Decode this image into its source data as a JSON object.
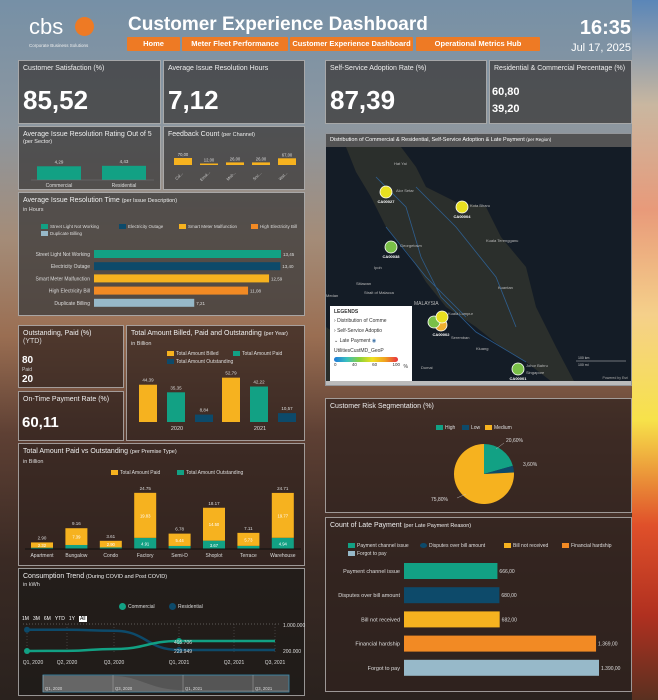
{
  "header": {
    "logo_text": "cbs",
    "logo_sub": "Corporate Business Solutions",
    "title": "Customer Experience Dashboard",
    "time": "16:35",
    "date": "Jul 17, 2025",
    "nav": [
      "Home",
      "Meter Fleet Performance",
      "Customer Experience Dashboard",
      "Operational Metrics Hub"
    ]
  },
  "colors": {
    "teal": "#12a184",
    "navy": "#0d4a6a",
    "yellow": "#f6b21f",
    "orange": "#f28a24",
    "lightblue": "#97b9c9",
    "nav": "#ee7a24"
  },
  "kpis": {
    "satisfaction": {
      "title": "Customer Satisfaction (%)",
      "value": "85,52"
    },
    "resolution_hours": {
      "title": "Average Issue Resolution Hours",
      "value": "7,12"
    },
    "self_service": {
      "title": "Self-Service Adoption Rate (%)",
      "value": "87,39"
    },
    "res_com": {
      "title": "Residential & Commercial Percentage (%)",
      "value1": "60,80",
      "value2": "39,20"
    },
    "outstanding": {
      "title": "Outstanding, Paid (%)",
      "subtitle": "(YTD)",
      "paid": "80",
      "paid_label": "Paid",
      "outstanding": "20"
    },
    "ontime": {
      "title": "On-Time Payment Rate (%)",
      "value": "60,11"
    }
  },
  "chart_data": [
    {
      "id": "rating",
      "type": "bar",
      "title": "Average Issue Resolution Rating Out of 5",
      "title_note": "(per Sector)",
      "categories": [
        "Commercial",
        "Residential"
      ],
      "values": [
        4.29,
        4.43
      ],
      "labels": [
        "4,29",
        "4,43"
      ]
    },
    {
      "id": "feedback",
      "type": "bar",
      "title": "Feedback Count",
      "title_note": "(per Channel)",
      "categories": [
        "Cal...",
        "Emai...",
        "Mob...",
        "Soc...",
        "Wal..."
      ],
      "values": [
        70,
        12,
        26,
        26,
        67
      ],
      "labels": [
        "70,00",
        "12,00",
        "26,00",
        "26,00",
        "67,00"
      ]
    },
    {
      "id": "resolution_time",
      "type": "bar",
      "orientation": "horizontal",
      "title": "Average Issue Resolution Time",
      "title_note": "(per Issue Description)",
      "subtitle": "in Hours",
      "categories": [
        "Street Light Not Working",
        "Electricity Outage",
        "Smart Meter Malfunction",
        "High Electricity Bill",
        "Duplicate Billing"
      ],
      "values": [
        13.45,
        13.4,
        12.59,
        11.08,
        7.21
      ],
      "labels": [
        "13,45",
        "13,40",
        "12,59",
        "11,08",
        "7,21"
      ]
    },
    {
      "id": "billed",
      "type": "bar",
      "title": "Total Amount Billed, Paid and Outstanding",
      "title_note": "(per Year)",
      "subtitle": "in Billion",
      "categories": [
        "2020",
        "2021"
      ],
      "series": [
        {
          "name": "Total Amount Billed",
          "values": [
            44.39,
            52.79
          ],
          "labels": [
            "44,39",
            "52,79"
          ]
        },
        {
          "name": "Total Amount Paid",
          "values": [
            35.35,
            42.22
          ],
          "labels": [
            "35,35",
            "42,22"
          ]
        },
        {
          "name": "Total Amount Outstanding",
          "values": [
            8.84,
            10.57
          ],
          "labels": [
            "8,84",
            "10,57"
          ]
        }
      ]
    },
    {
      "id": "premise",
      "type": "bar",
      "stacked": true,
      "title": "Total Amount Paid vs Outstanding",
      "title_note": "(per Premise Type)",
      "subtitle": "in Billion",
      "categories": [
        "Apartment",
        "Bungalow",
        "Condo",
        "Factory",
        "Semi-D",
        "Shoplot",
        "Terrace",
        "Warehouse"
      ],
      "series": [
        {
          "name": "Total Amount Paid",
          "values": [
            2.32,
            7.39,
            2.9,
            19.83,
            5.44,
            14.5,
            5.73,
            19.77
          ]
        },
        {
          "name": "Total Amount Outstanding",
          "values": [
            0.58,
            1.77,
            0.71,
            4.91,
            1.34,
            3.67,
            1.38,
            4.94
          ]
        }
      ],
      "totals": [
        "2.90",
        "9.16",
        "3.61",
        "24.75",
        "6.78",
        "18.17",
        "7.11",
        "24.71"
      ],
      "paid_labels": [
        "2.32",
        "7.39",
        "2.90",
        "19.83",
        "5.44",
        "14.50",
        "5.73",
        "19.77"
      ],
      "out_labels": [
        "",
        "",
        "",
        "4.91",
        "",
        "3.67",
        "",
        "4.94"
      ]
    },
    {
      "id": "consumption",
      "type": "line",
      "title": "Consumption Trend",
      "title_note": "(During COVID and Post COVID)",
      "subtitle": "in kWh",
      "x": [
        "Q1, 2020",
        "Q2, 2020",
        "Q3, 2020",
        "Q1, 2021",
        "Q2, 2021",
        "Q3, 2021"
      ],
      "ylim": [
        200000,
        1000000
      ],
      "yticks": [
        "1.000.000",
        "200.000"
      ],
      "series": [
        {
          "name": "Commercial",
          "values": [
            200000,
            205000,
            260000,
            495706,
            495706,
            495706
          ]
        },
        {
          "name": "Residential",
          "values": [
            830000,
            830000,
            800000,
            229949,
            229949,
            229949
          ]
        }
      ],
      "annotations": [
        "495.706",
        "229.949"
      ],
      "ranges": [
        "1M",
        "3M",
        "6M",
        "YTD",
        "1Y",
        "All"
      ],
      "navigator": [
        "Q1, 2020",
        "Q3, 2020",
        "Q1, 2021",
        "Q3, 2021"
      ]
    },
    {
      "id": "risk",
      "type": "pie",
      "title": "Customer Risk Segmentation (%)",
      "categories": [
        "High",
        "Low",
        "Medium"
      ],
      "values": [
        20.6,
        3.6,
        75.8
      ],
      "labels": [
        "20,60%",
        "3,60%",
        "75,80%"
      ]
    },
    {
      "id": "late",
      "type": "bar",
      "orientation": "horizontal",
      "title": "Count of Late Payment",
      "title_note": "(per Late Payment Reason)",
      "categories": [
        "Payment channel issue",
        "Disputes over bill amount",
        "Bill not received",
        "Financial hardship",
        "Forgot to pay"
      ],
      "values": [
        666,
        680,
        682,
        1369,
        1390
      ],
      "labels": [
        "666,00",
        "680,00",
        "682,00",
        "1.369,00",
        "1.390,00"
      ]
    }
  ],
  "map": {
    "title": "Distribution of Commercial & Residential, Self-Service Adoption & Late Payment",
    "title_note": "(per Region)",
    "places": [
      "Hat Yai",
      "Alor Setar",
      "Kota Bharu",
      "Georgetown",
      "Kuala Terengganu",
      "Ipoh",
      "Sitiawan",
      "MALAYSIA",
      "Kuantan",
      "Kuala Lumpur",
      "Seremban",
      "Kluang",
      "Johor Bahru",
      "Singapore",
      "Dumai",
      "Medan",
      "Strait of Malacca"
    ],
    "points": [
      "CA00027",
      "CA00004",
      "CA00038",
      "CA00002",
      "CA00001"
    ],
    "legend": {
      "title": "LEGENDS",
      "layers": [
        "Distribution of Comme",
        "Self-Service Adoptio",
        "Late Payment"
      ],
      "field": "UtilitiesCustMD_GeoP",
      "ticks": [
        "0",
        "40",
        "60",
        "100"
      ],
      "unit": "%"
    },
    "scale": [
      "100 km",
      "100 mi"
    ],
    "credit": "Powered by Esri"
  }
}
